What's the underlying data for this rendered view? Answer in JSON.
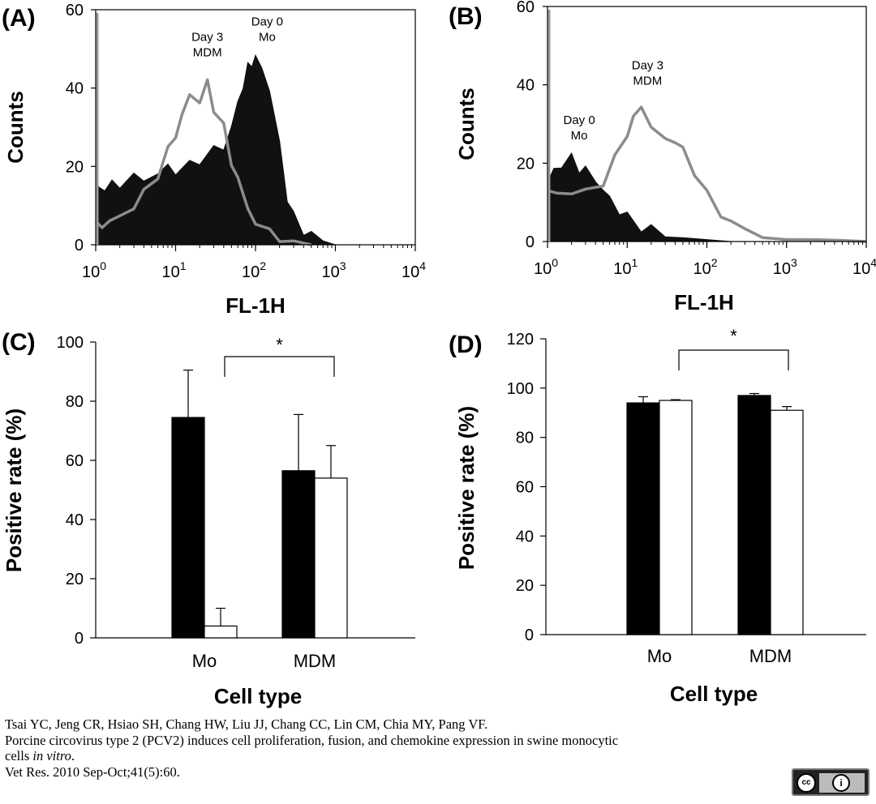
{
  "chart_data": [
    {
      "panel": "(A)",
      "type": "area",
      "xlabel": "FL-1H",
      "ylabel": "Counts",
      "xscale": "log",
      "xlim": [
        1,
        10000
      ],
      "ylim": [
        0,
        60
      ],
      "yticks": [
        "0",
        "20",
        "40",
        "60"
      ],
      "xtick_exponents": [
        "0",
        "1",
        "2",
        "3",
        "4"
      ],
      "annotations": [
        {
          "lines": [
            "Day 3",
            "MDM"
          ],
          "x": 25,
          "y": 52
        },
        {
          "lines": [
            "Day 0",
            "Mo"
          ],
          "x": 140,
          "y": 56
        }
      ],
      "series": [
        {
          "name": "Day 0 Mo",
          "style": "filled-black",
          "x": [
            1,
            1.1,
            1.3,
            1.6,
            2,
            3,
            4,
            6,
            8,
            10,
            15,
            20,
            30,
            40,
            50,
            60,
            70,
            80,
            90,
            100,
            120,
            150,
            200,
            250,
            300,
            400,
            500,
            700,
            1000
          ],
          "y": [
            16,
            14,
            15,
            15,
            16,
            17,
            17,
            18,
            20,
            19,
            20,
            22,
            24,
            25,
            30,
            36,
            41,
            45,
            47,
            47,
            46,
            39,
            26,
            12,
            7,
            4,
            2,
            1,
            0
          ]
        },
        {
          "name": "Day 3 MDM",
          "style": "gray-line",
          "x": [
            1,
            1.2,
            1.5,
            2,
            3,
            4,
            6,
            8,
            10,
            12,
            15,
            20,
            25,
            30,
            40,
            50,
            60,
            80,
            100,
            150,
            200,
            300,
            500
          ],
          "y": [
            5,
            5,
            6,
            7,
            10,
            13,
            18,
            24,
            28,
            33,
            38,
            37,
            41,
            35,
            30,
            21,
            17,
            9,
            6,
            3,
            2,
            1,
            0
          ]
        }
      ]
    },
    {
      "panel": "(B)",
      "type": "area",
      "xlabel": "FL-1H",
      "ylabel": "Counts",
      "xscale": "log",
      "xlim": [
        1,
        10000
      ],
      "ylim": [
        0,
        60
      ],
      "yticks": [
        "0",
        "20",
        "40",
        "60"
      ],
      "xtick_exponents": [
        "0",
        "1",
        "2",
        "3",
        "4"
      ],
      "annotations": [
        {
          "lines": [
            "Day 3",
            "MDM"
          ],
          "x": 18,
          "y": 44
        },
        {
          "lines": [
            "Day 0",
            "Mo"
          ],
          "x": 2.5,
          "y": 30
        }
      ],
      "series": [
        {
          "name": "Day 0 Mo",
          "style": "filled-black",
          "x": [
            1,
            1.2,
            1.5,
            2,
            2.5,
            3,
            4,
            5,
            6,
            8,
            10,
            15,
            20,
            30,
            50,
            100,
            200
          ],
          "y": [
            15,
            18,
            20,
            21,
            19,
            18,
            16,
            13,
            11,
            8,
            6,
            4,
            3,
            2,
            1,
            0.5,
            0
          ]
        },
        {
          "name": "Day 3 MDM",
          "style": "gray-line",
          "x": [
            1,
            1.3,
            2,
            3,
            5,
            7,
            10,
            12,
            15,
            20,
            30,
            40,
            50,
            70,
            100,
            150,
            200,
            300,
            500,
            1000,
            2000,
            5000,
            10000
          ],
          "y": [
            12,
            13,
            12,
            13,
            15,
            21,
            28,
            31,
            35,
            29,
            26,
            26,
            23,
            18,
            12,
            7,
            5,
            3,
            1,
            0.5,
            0.5,
            0.3,
            0
          ]
        }
      ]
    },
    {
      "panel": "(C)",
      "type": "bar",
      "xlabel": "Cell type",
      "ylabel": "Positive rate (%)",
      "categories": [
        "Mo",
        "MDM"
      ],
      "ylim": [
        0,
        100
      ],
      "yticks": [
        "0",
        "20",
        "40",
        "60",
        "80",
        "100"
      ],
      "series": [
        {
          "name": "black bar",
          "color": "#000000",
          "values": [
            74.5,
            56.5
          ],
          "errors": [
            16,
            19
          ]
        },
        {
          "name": "white bar",
          "color": "#ffffff",
          "values": [
            4,
            54
          ],
          "errors": [
            6,
            11
          ]
        }
      ],
      "significance": {
        "label": "*",
        "y": 95
      }
    },
    {
      "panel": "(D)",
      "type": "bar",
      "xlabel": "Cell type",
      "ylabel": "Positive rate (%)",
      "categories": [
        "Mo",
        "MDM"
      ],
      "ylim": [
        0,
        120
      ],
      "yticks": [
        "0",
        "20",
        "40",
        "60",
        "80",
        "100",
        "120"
      ],
      "series": [
        {
          "name": "black bar",
          "color": "#000000",
          "values": [
            94,
            97
          ],
          "errors": [
            2.5,
            0.8
          ]
        },
        {
          "name": "white bar",
          "color": "#ffffff",
          "values": [
            95,
            91
          ],
          "errors": [
            0.3,
            1.5
          ]
        }
      ],
      "significance": {
        "label": "*",
        "y": 116
      }
    }
  ],
  "citation": {
    "line1": "Tsai YC, Jeng CR, Hsiao SH, Chang HW, Liu JJ, Chang CC, Lin CM, Chia MY, Pang VF.",
    "line2": "Porcine circovirus type 2 (PCV2) induces cell proliferation, fusion, and chemokine expression in swine monocytic",
    "line3_prefix": "cells ",
    "line3_italic": "in vitro",
    "line3_suffix": ".",
    "line4": "Vet Res. 2010 Sep-Oct;41(5):60."
  },
  "license_badge": {
    "cc": "cc",
    "by": "i"
  }
}
